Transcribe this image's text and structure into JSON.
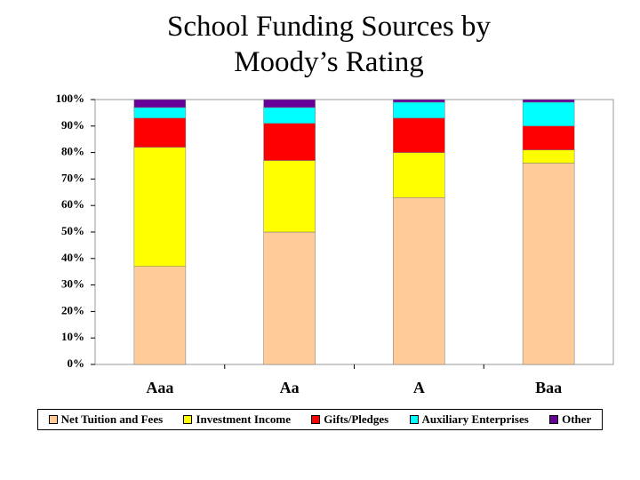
{
  "chart_data": {
    "type": "stacked-bar",
    "title": "School Funding Sources by Moody’s Rating",
    "categories": [
      "Aaa",
      "Aa",
      "A",
      "Baa"
    ],
    "series": [
      {
        "name": "Net Tuition and Fees",
        "color": "#ffcc99",
        "values": [
          37,
          50,
          63,
          76
        ]
      },
      {
        "name": "Investment Income",
        "color": "#ffff00",
        "values": [
          45,
          27,
          17,
          5
        ]
      },
      {
        "name": "Gifts/Pledges",
        "color": "#ff0000",
        "values": [
          11,
          14,
          13,
          9
        ]
      },
      {
        "name": "Auxiliary Enterprises",
        "color": "#00ffff",
        "values": [
          4,
          6,
          6,
          9
        ]
      },
      {
        "name": "Other",
        "color": "#660099",
        "values": [
          3,
          3,
          1,
          1
        ]
      }
    ],
    "ylim": [
      0,
      100
    ],
    "yticks": [
      {
        "value": 0,
        "label": "0%"
      },
      {
        "value": 10,
        "label": "10%"
      },
      {
        "value": 20,
        "label": "20%"
      },
      {
        "value": 30,
        "label": "30%"
      },
      {
        "value": 40,
        "label": "40%"
      },
      {
        "value": 50,
        "label": "50%"
      },
      {
        "value": 60,
        "label": "60%"
      },
      {
        "value": 70,
        "label": "70%"
      },
      {
        "value": 80,
        "label": "80%"
      },
      {
        "value": 90,
        "label": "90%"
      },
      {
        "value": 100,
        "label": "100%"
      }
    ],
    "grid": false,
    "legend": "bottom"
  }
}
